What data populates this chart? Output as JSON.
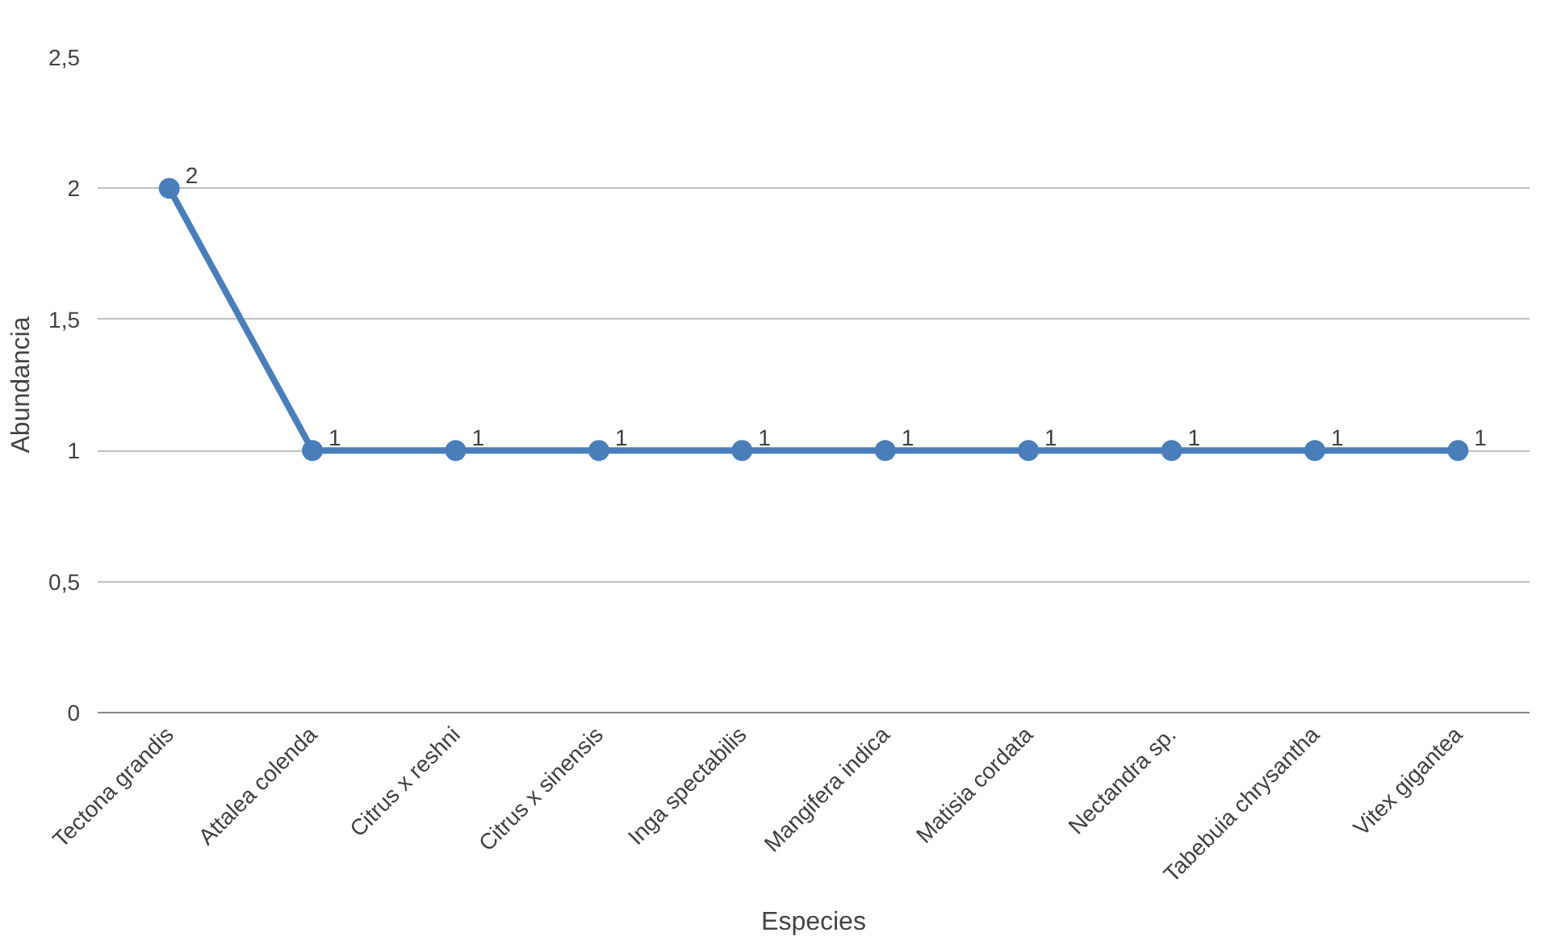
{
  "chart_data": {
    "type": "line",
    "xlabel": "Especies",
    "ylabel": "Abundancia",
    "categories": [
      "Tectona grandis",
      "Attalea colenda",
      "Citrus x reshni",
      "Citrus x sinensis",
      "Inga spectabilis",
      "Mangifera indica",
      "Matisia cordata",
      "Nectandra sp.",
      "Tabebuia chrysantha",
      "Vitex gigantea"
    ],
    "series": [
      {
        "color": "#4a7ebb",
        "values": [
          2,
          1,
          1,
          1,
          1,
          1,
          1,
          1,
          1,
          1
        ]
      }
    ],
    "ylim": [
      0,
      2.5
    ],
    "yticks": [
      0,
      {
        "value": 0.5,
        "label": "0,5"
      },
      1,
      {
        "value": 1.5,
        "label": "1,5"
      },
      2,
      {
        "value": 2.5,
        "label": "2,5"
      }
    ],
    "grid": "y",
    "marker": "circle",
    "line_style": "solid",
    "data_labels": true
  }
}
